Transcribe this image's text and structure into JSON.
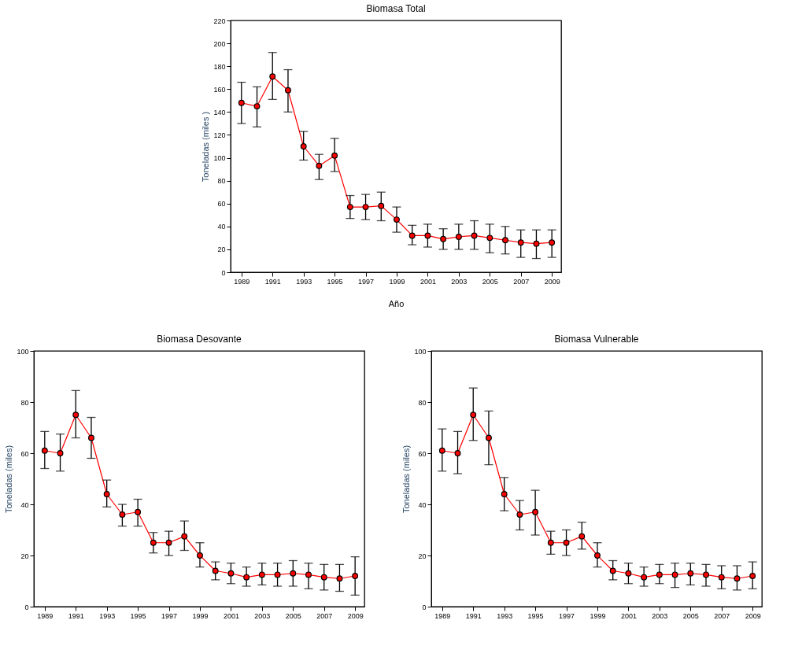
{
  "chart_data": [
    {
      "type": "line",
      "title": "Biomasa Total",
      "xlabel": "Año",
      "ylabel": "Toneladas (miles )",
      "x": [
        1989,
        1990,
        1991,
        1992,
        1993,
        1994,
        1995,
        1996,
        1997,
        1998,
        1999,
        2000,
        2001,
        2002,
        2003,
        2004,
        2005,
        2006,
        2007,
        2008,
        2009
      ],
      "series": [
        {
          "color": "#ff0000",
          "values": [
            148,
            145,
            171,
            159,
            110,
            93,
            102,
            57,
            57,
            58,
            46,
            32,
            32,
            29,
            31,
            32,
            30,
            28,
            26,
            25,
            26
          ],
          "errors": [
            [
              130,
              166
            ],
            [
              127,
              162
            ],
            [
              151,
              192
            ],
            [
              140,
              177
            ],
            [
              98,
              123
            ],
            [
              81,
              103
            ],
            [
              88,
              117
            ],
            [
              47,
              67
            ],
            [
              46,
              68
            ],
            [
              45,
              70
            ],
            [
              35,
              57
            ],
            [
              24,
              41
            ],
            [
              22,
              42
            ],
            [
              20,
              38
            ],
            [
              20,
              42
            ],
            [
              20,
              45
            ],
            [
              17,
              42
            ],
            [
              16,
              40
            ],
            [
              13,
              37
            ],
            [
              12,
              37
            ],
            [
              13,
              37
            ]
          ]
        }
      ],
      "xlim": [
        1988.3,
        2009.6
      ],
      "xticks": [
        1989,
        1991,
        1993,
        1995,
        1997,
        1999,
        2001,
        2003,
        2005,
        2007,
        2009
      ],
      "ylim": [
        0,
        220
      ],
      "yticks": [
        0,
        20,
        40,
        60,
        80,
        100,
        120,
        140,
        160,
        180,
        200,
        220
      ],
      "grid": false,
      "marker": "circle",
      "line_style": "solid"
    },
    {
      "type": "line",
      "title": "Biomasa Desovante",
      "ylabel": "Toneladas (miles)",
      "x": [
        1989,
        1990,
        1991,
        1992,
        1993,
        1994,
        1995,
        1996,
        1997,
        1998,
        1999,
        2000,
        2001,
        2002,
        2003,
        2004,
        2005,
        2006,
        2007,
        2008,
        2009
      ],
      "series": [
        {
          "color": "#ff0000",
          "values": [
            61,
            60,
            75,
            66,
            44,
            36,
            37,
            25,
            25,
            27.5,
            20,
            14,
            13,
            11.5,
            12.5,
            12.5,
            13,
            12.5,
            11.5,
            11,
            12
          ],
          "errors": [
            [
              54,
              68.5
            ],
            [
              53,
              67.5
            ],
            [
              66,
              84.5
            ],
            [
              58,
              74
            ],
            [
              39,
              49.5
            ],
            [
              31.5,
              40
            ],
            [
              31.5,
              42
            ],
            [
              21,
              29
            ],
            [
              20,
              29.5
            ],
            [
              22,
              33.5
            ],
            [
              15.5,
              25
            ],
            [
              10.5,
              17.5
            ],
            [
              9,
              17
            ],
            [
              8,
              15.5
            ],
            [
              8.5,
              17
            ],
            [
              8,
              17
            ],
            [
              8,
              18
            ],
            [
              7,
              17
            ],
            [
              6.5,
              16.5
            ],
            [
              6,
              16.5
            ],
            [
              4.5,
              19.5
            ]
          ]
        }
      ],
      "xlim": [
        1988.3,
        2009.6
      ],
      "xticks": [
        1989,
        1991,
        1993,
        1995,
        1997,
        1999,
        2001,
        2003,
        2005,
        2007,
        2009
      ],
      "ylim": [
        0,
        100
      ],
      "yticks": [
        0,
        20,
        40,
        60,
        80,
        100
      ],
      "grid": false,
      "marker": "circle",
      "line_style": "solid"
    },
    {
      "type": "line",
      "title": "Biomasa Vulnerable",
      "ylabel": "Toneladas (miles)",
      "x": [
        1989,
        1990,
        1991,
        1992,
        1993,
        1994,
        1995,
        1996,
        1997,
        1998,
        1999,
        2000,
        2001,
        2002,
        2003,
        2004,
        2005,
        2006,
        2007,
        2008,
        2009
      ],
      "series": [
        {
          "color": "#ff0000",
          "values": [
            61,
            60,
            75,
            66,
            44,
            36,
            37,
            25,
            25,
            27.5,
            20,
            14,
            13,
            11.5,
            12.5,
            12.5,
            13,
            12.5,
            11.5,
            11,
            12
          ],
          "errors": [
            [
              53,
              69.5
            ],
            [
              52,
              68.5
            ],
            [
              65,
              85.5
            ],
            [
              55.5,
              76.5
            ],
            [
              37.5,
              50.5
            ],
            [
              30,
              41.5
            ],
            [
              28,
              45.5
            ],
            [
              20.5,
              29.5
            ],
            [
              20,
              30
            ],
            [
              22.5,
              33
            ],
            [
              15.5,
              25
            ],
            [
              10.5,
              18
            ],
            [
              9,
              17
            ],
            [
              8,
              15.5
            ],
            [
              9,
              16.5
            ],
            [
              7.5,
              17
            ],
            [
              8.5,
              17
            ],
            [
              8,
              16.5
            ],
            [
              7,
              16
            ],
            [
              6.5,
              16
            ],
            [
              7,
              17.5
            ]
          ]
        }
      ],
      "xlim": [
        1988.3,
        2009.6
      ],
      "xticks": [
        1989,
        1991,
        1993,
        1995,
        1997,
        1999,
        2001,
        2003,
        2005,
        2007,
        2009
      ],
      "ylim": [
        0,
        100
      ],
      "yticks": [
        0,
        20,
        40,
        60,
        80,
        100
      ],
      "grid": false,
      "marker": "circle",
      "line_style": "solid"
    }
  ]
}
